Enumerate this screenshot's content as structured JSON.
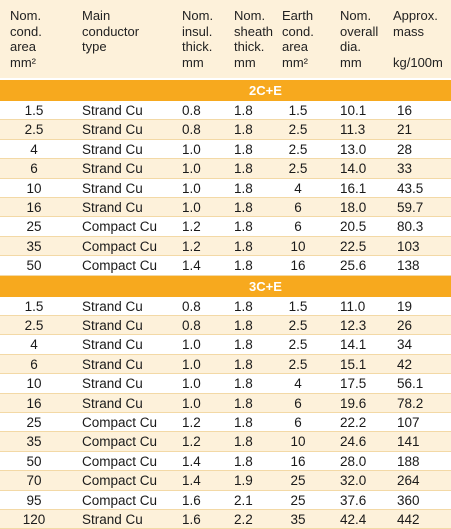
{
  "headers": {
    "area": "Nom.\ncond.\narea\nmm²",
    "type": "Main\nconductor\ntype",
    "insul": "Nom.\ninsul.\nthick.\nmm",
    "sheath": "Nom.\nsheath\nthick.\nmm",
    "earth": "Earth\ncond.\narea\nmm²",
    "overall": "Nom.\noverall\ndia.\nmm",
    "mass": "Approx.\nmass\n\nkg/100m"
  },
  "sections": [
    {
      "label": "2C+E",
      "rows": [
        [
          "1.5",
          "Strand Cu",
          "0.8",
          "1.8",
          "1.5",
          "10.1",
          "16"
        ],
        [
          "2.5",
          "Strand Cu",
          "0.8",
          "1.8",
          "2.5",
          "11.3",
          "21"
        ],
        [
          "4",
          "Strand Cu",
          "1.0",
          "1.8",
          "2.5",
          "13.0",
          "28"
        ],
        [
          "6",
          "Strand Cu",
          "1.0",
          "1.8",
          "2.5",
          "14.0",
          "33"
        ],
        [
          "10",
          "Strand Cu",
          "1.0",
          "1.8",
          "4",
          "16.1",
          "43.5"
        ],
        [
          "16",
          "Strand Cu",
          "1.0",
          "1.8",
          "6",
          "18.0",
          "59.7"
        ],
        [
          "25",
          "Compact Cu",
          "1.2",
          "1.8",
          "6",
          "20.5",
          "80.3"
        ],
        [
          "35",
          "Compact Cu",
          "1.2",
          "1.8",
          "10",
          "22.5",
          "103"
        ],
        [
          "50",
          "Compact Cu",
          "1.4",
          "1.8",
          "16",
          "25.6",
          "138"
        ]
      ]
    },
    {
      "label": "3C+E",
      "rows": [
        [
          "1.5",
          "Strand Cu",
          "0.8",
          "1.8",
          "1.5",
          "11.0",
          "19"
        ],
        [
          "2.5",
          "Strand Cu",
          "0.8",
          "1.8",
          "2.5",
          "12.3",
          "26"
        ],
        [
          "4",
          "Strand Cu",
          "1.0",
          "1.8",
          "2.5",
          "14.1",
          "34"
        ],
        [
          "6",
          "Strand Cu",
          "1.0",
          "1.8",
          "2.5",
          "15.1",
          "42"
        ],
        [
          "10",
          "Strand Cu",
          "1.0",
          "1.8",
          "4",
          "17.5",
          "56.1"
        ],
        [
          "16",
          "Strand Cu",
          "1.0",
          "1.8",
          "6",
          "19.6",
          "78.2"
        ],
        [
          "25",
          "Compact Cu",
          "1.2",
          "1.8",
          "6",
          "22.2",
          "107"
        ],
        [
          "35",
          "Compact Cu",
          "1.2",
          "1.8",
          "10",
          "24.6",
          "141"
        ],
        [
          "50",
          "Compact Cu",
          "1.4",
          "1.8",
          "16",
          "28.0",
          "188"
        ],
        [
          "70",
          "Compact Cu",
          "1.4",
          "1.9",
          "25",
          "32.0",
          "264"
        ],
        [
          "95",
          "Compact Cu",
          "1.6",
          "2.1",
          "25",
          "37.6",
          "360"
        ],
        [
          "120",
          "Strand Cu",
          "1.6",
          "2.2",
          "35",
          "42.4",
          "442"
        ]
      ]
    }
  ],
  "colors": {
    "band": "#f7a91e",
    "stripe": "#fdf1da",
    "rule": "#f3d9a6"
  }
}
